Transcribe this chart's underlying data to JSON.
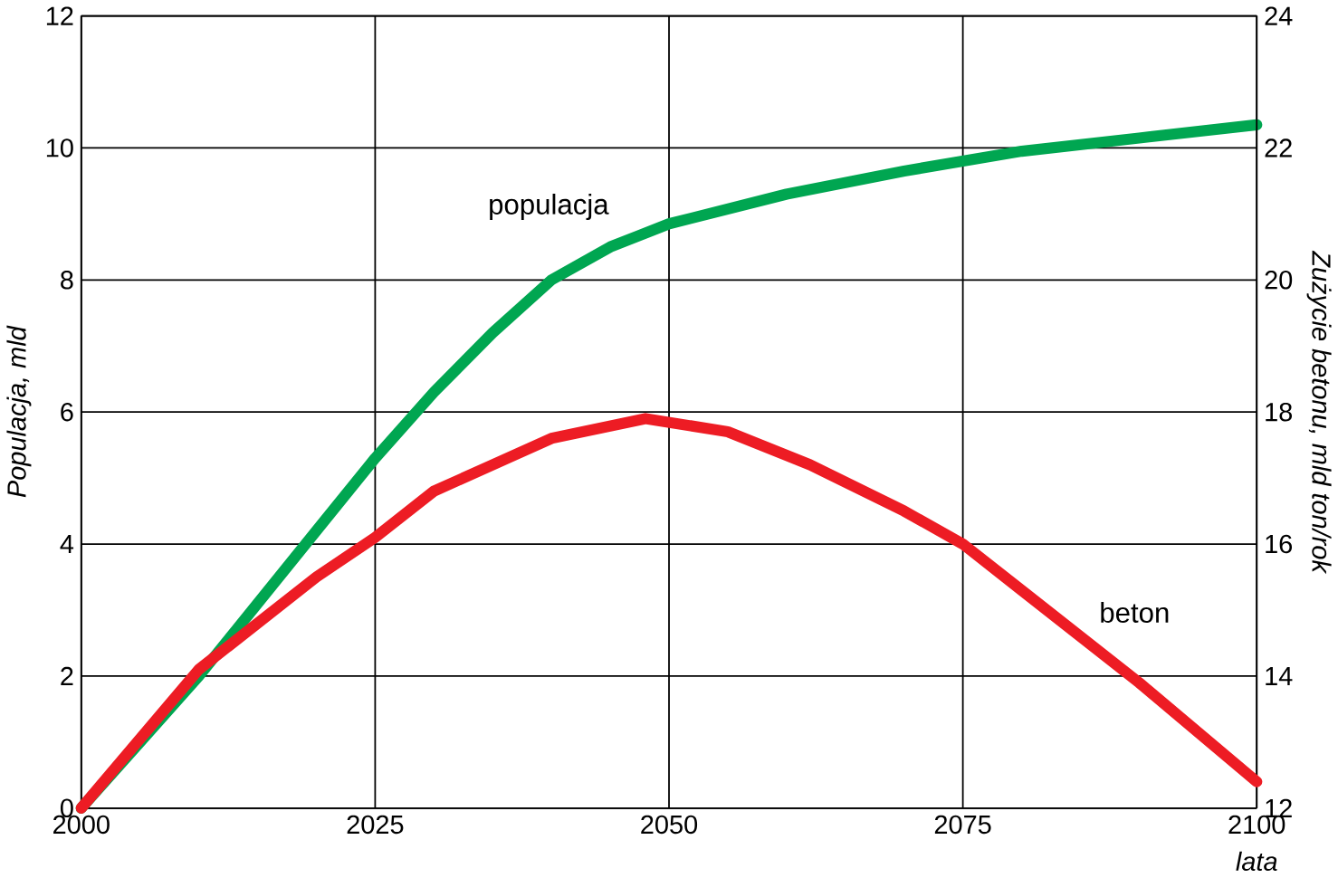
{
  "chart_data": {
    "type": "line",
    "xlabel": "lata",
    "ylabel": "Populacja, mld",
    "y2label": "Zużycie betonu, mld ton/rok",
    "series": [
      {
        "name": "populacja",
        "color": "#00a651",
        "x": [
          2000,
          2005,
          2010,
          2020,
          2025,
          2030,
          2035,
          2040,
          2045,
          2050,
          2060,
          2070,
          2080,
          2090,
          2100
        ],
        "values": [
          0,
          1.0,
          2.0,
          4.2,
          5.3,
          6.3,
          7.2,
          8.0,
          8.5,
          8.85,
          9.3,
          9.65,
          9.95,
          10.15,
          10.35
        ]
      },
      {
        "name": "beton",
        "color": "#ed1c24",
        "axis": "y2",
        "x": [
          2000,
          2010,
          2020,
          2025,
          2030,
          2040,
          2048,
          2055,
          2062,
          2070,
          2075,
          2080,
          2090,
          2100
        ],
        "values": [
          12.0,
          14.1,
          15.5,
          16.1,
          16.8,
          17.6,
          17.9,
          17.7,
          17.2,
          16.5,
          16.0,
          15.3,
          13.9,
          12.4
        ]
      }
    ],
    "xlim": [
      2000,
      2100
    ],
    "xticks": [
      2000,
      2025,
      2050,
      2075,
      2100
    ],
    "ylim": [
      0,
      12
    ],
    "yticks": [
      0,
      2,
      4,
      6,
      8,
      10,
      12
    ],
    "y2lim": [
      12,
      24
    ],
    "y2ticks": [
      12,
      14,
      16,
      18,
      20,
      22,
      24
    ],
    "grid": true,
    "marker": "none",
    "line_style": "solid"
  }
}
